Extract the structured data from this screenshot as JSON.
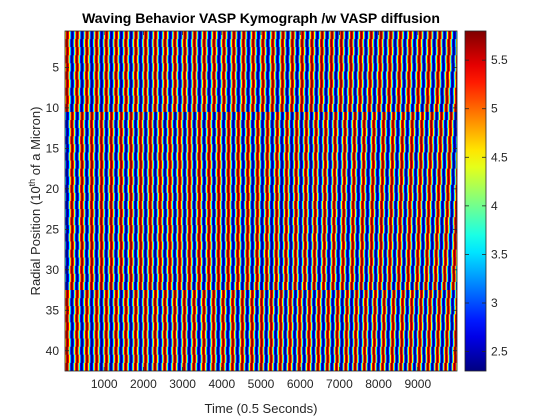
{
  "chart_data": {
    "type": "heatmap",
    "title": "Waving Behavior VASP Kymograph /w VASP diffusion",
    "xlabel": "Time (0.5 Seconds)",
    "ylabel": {
      "prefix": "Radial Position (10",
      "superscript": "th",
      "suffix": " of a Micron)"
    },
    "xlim": [
      0,
      10000
    ],
    "ylim": [
      0.5,
      42.5
    ],
    "x_ticks": [
      "1000",
      "2000",
      "3000",
      "4000",
      "5000",
      "6000",
      "7000",
      "8000",
      "9000"
    ],
    "x_tick_values": [
      1000,
      2000,
      3000,
      4000,
      5000,
      6000,
      7000,
      8000,
      9000
    ],
    "y_ticks": [
      "5",
      "10",
      "15",
      "20",
      "25",
      "30",
      "35",
      "40"
    ],
    "y_tick_values": [
      5,
      10,
      15,
      20,
      25,
      30,
      35,
      40
    ],
    "y_direction": "reversed",
    "rows": 42,
    "colormap": "jet",
    "clim": [
      2.3,
      5.8
    ],
    "colorbar": {
      "ticks": [
        "2.5",
        "3",
        "3.5",
        "4",
        "4.5",
        "5",
        "5.5"
      ],
      "tick_values": [
        2.5,
        3,
        3.5,
        4,
        4.5,
        5,
        5.5
      ],
      "placement": "right"
    },
    "pattern": {
      "description_of_values": "periodic vertical stripes oscillating between min and max",
      "stripe_count": 40,
      "min_value": 2.3,
      "max_value": 5.8,
      "row_discontinuities": [
        10.5,
        32.5
      ]
    }
  }
}
